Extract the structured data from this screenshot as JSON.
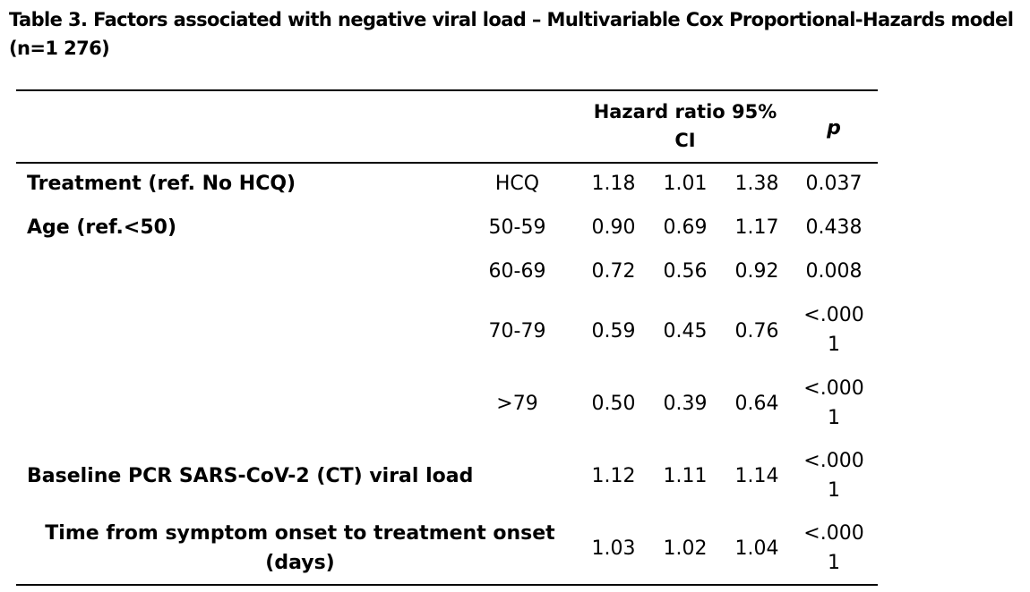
{
  "table": {
    "title": "Table 3. Factors associated with negative viral load – Multivariable Cox Proportional-Hazards model (n=1 276)",
    "headers": {
      "hr_line1": "Hazard ratio 95%",
      "hr_line2": "CI",
      "p": "p"
    },
    "rows": [
      {
        "label": "Treatment (ref. No HCQ)",
        "level": "HCQ",
        "hr": "1.18",
        "lo": "1.01",
        "hi": "1.38",
        "p1": "0.037",
        "p2": ""
      },
      {
        "label": "Age (ref.<50)",
        "level": "50-59",
        "hr": "0.90",
        "lo": "0.69",
        "hi": "1.17",
        "p1": "0.438",
        "p2": ""
      },
      {
        "label": "",
        "level": "60-69",
        "hr": "0.72",
        "lo": "0.56",
        "hi": "0.92",
        "p1": "0.008",
        "p2": ""
      },
      {
        "label": "",
        "level": "70-79",
        "hr": "0.59",
        "lo": "0.45",
        "hi": "0.76",
        "p1": "<.000",
        "p2": "1"
      },
      {
        "label": "",
        "level": ">79",
        "hr": "0.50",
        "lo": "0.39",
        "hi": "0.64",
        "p1": "<.000",
        "p2": "1"
      },
      {
        "label": "Baseline PCR SARS-CoV-2 (CT) viral load",
        "level": "",
        "hr": "1.12",
        "lo": "1.11",
        "hi": "1.14",
        "p1": "<.000",
        "p2": "1"
      },
      {
        "label": "Time from symptom onset to treatment onset",
        "label2": "(days)",
        "level": "",
        "hr": "1.03",
        "lo": "1.02",
        "hi": "1.04",
        "p1": "<.000",
        "p2": "1"
      }
    ]
  }
}
